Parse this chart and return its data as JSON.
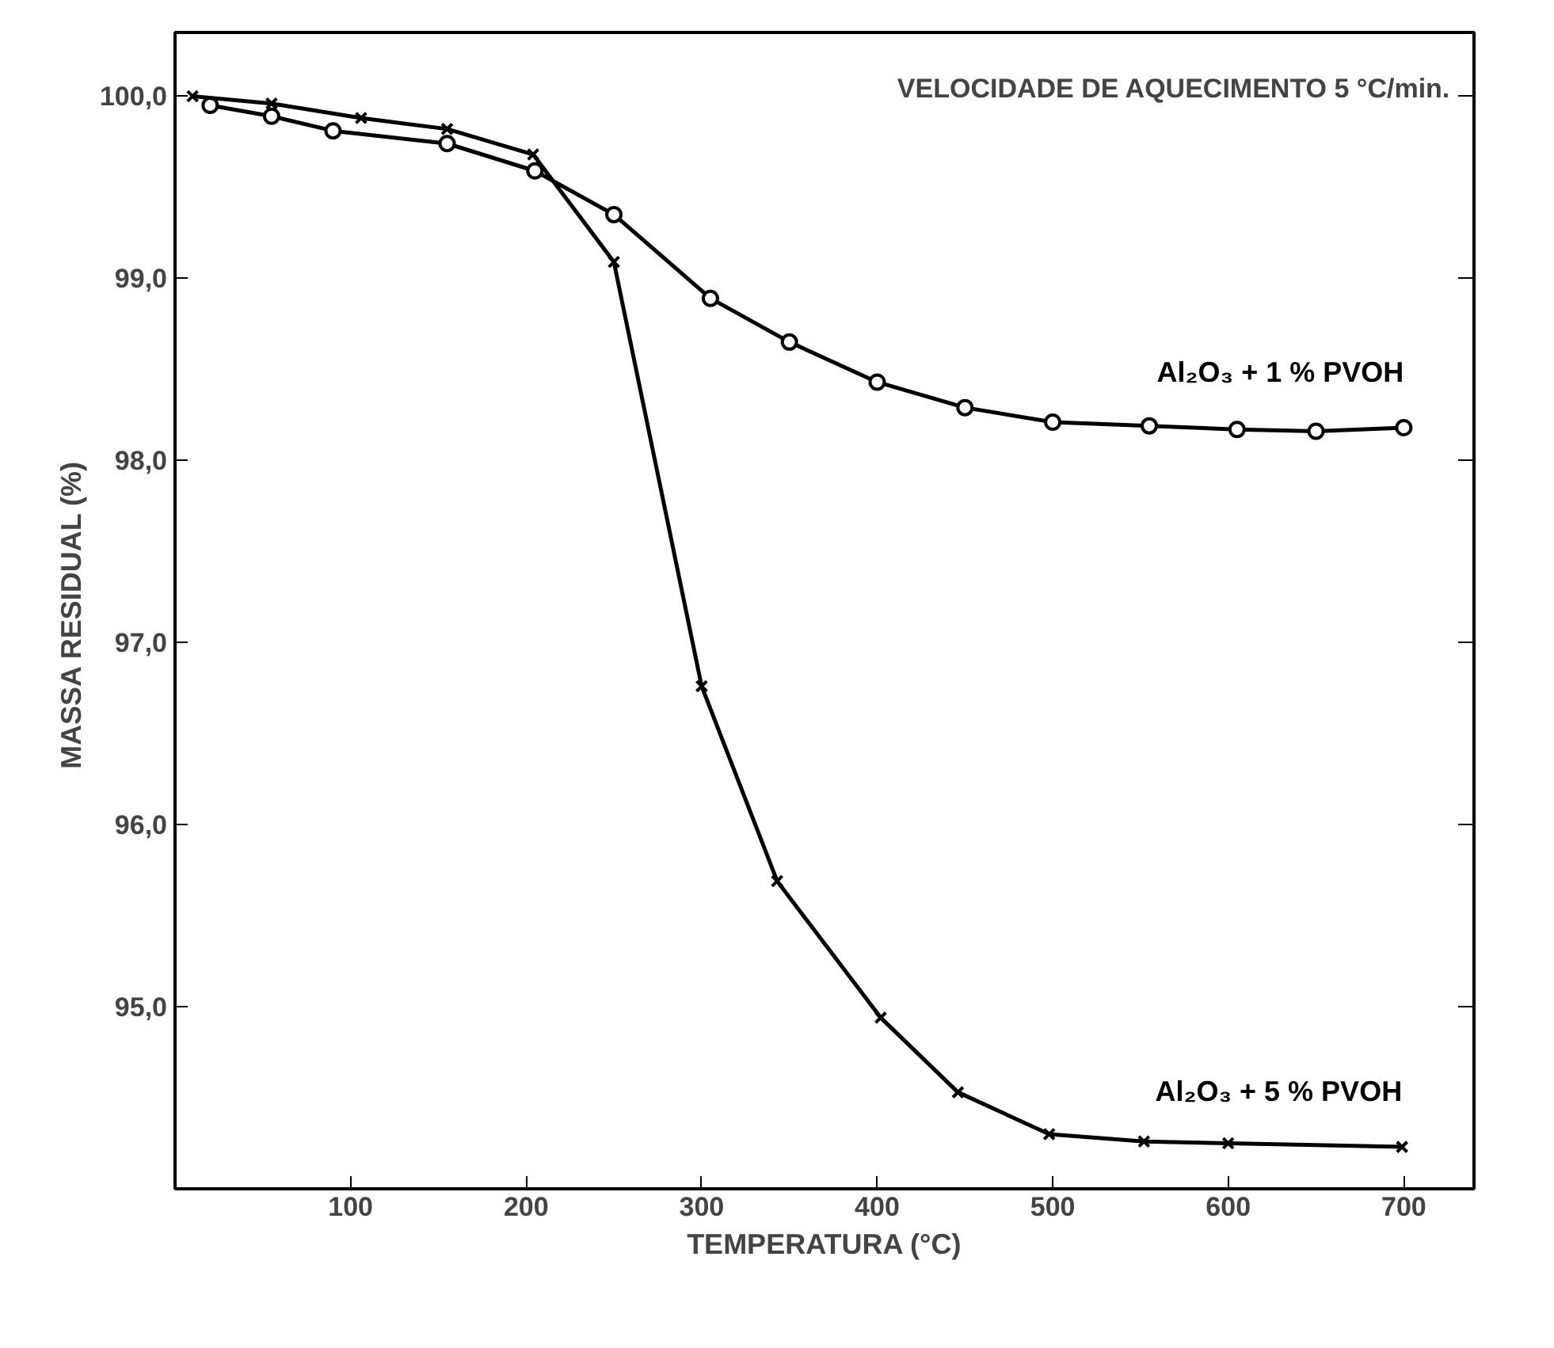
{
  "chart_data": {
    "type": "line",
    "xlabel": "TEMPERATURA (°C)",
    "ylabel": "MASSA RESIDUAL  (%)",
    "annotations": [
      "VELOCIDADE DE AQUECIMENTO  5 °C/min."
    ],
    "xlim": [
      0,
      740
    ],
    "ylim": [
      94.0,
      100.35
    ],
    "xticks": [
      100,
      200,
      300,
      400,
      500,
      600,
      700
    ],
    "yticks": [
      {
        "value": 95,
        "label": "95,0"
      },
      {
        "value": 96,
        "label": "96,0"
      },
      {
        "value": 97,
        "label": "97,0"
      },
      {
        "value": 98,
        "label": "98,0"
      },
      {
        "value": 99,
        "label": "99,0"
      },
      {
        "value": 100,
        "label": "100,0"
      }
    ],
    "grid": false,
    "line_style": "solid",
    "series": [
      {
        "name": "Al₂O₃ + 1 % PVOH",
        "color": "#000000",
        "marker": "circle",
        "x": [
          20,
          55,
          90,
          155,
          205,
          250,
          305,
          350,
          400,
          450,
          500,
          555,
          605,
          650,
          700
        ],
        "values": [
          99.95,
          99.89,
          99.81,
          99.74,
          99.59,
          99.35,
          98.89,
          98.65,
          98.43,
          98.29,
          98.21,
          98.19,
          98.17,
          98.16,
          98.18
        ]
      },
      {
        "name": "Al₂O₃ + 5 % PVOH",
        "color": "#000000",
        "marker": "cross",
        "x": [
          10,
          55,
          106,
          155,
          204,
          250,
          300,
          343,
          402,
          446,
          498,
          552,
          600,
          699
        ],
        "values": [
          100.0,
          99.96,
          99.88,
          99.82,
          99.68,
          99.09,
          96.76,
          95.69,
          94.94,
          94.53,
          94.3,
          94.26,
          94.25,
          94.23
        ]
      }
    ]
  }
}
